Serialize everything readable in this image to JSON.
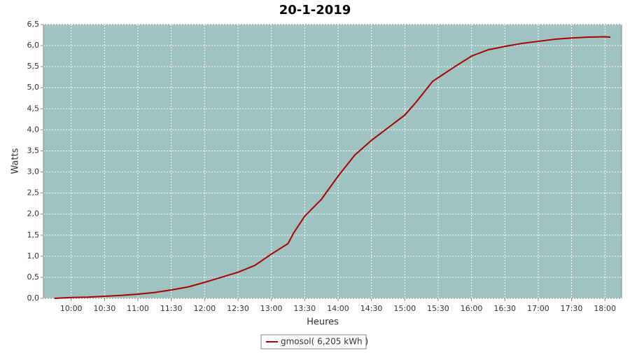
{
  "chart_data": {
    "type": "line",
    "title": "20-1-2019",
    "xlabel": "Heures",
    "ylabel": "Watts",
    "x": [
      "09:45",
      "10:00",
      "10:15",
      "10:30",
      "10:45",
      "11:00",
      "11:15",
      "11:30",
      "11:45",
      "12:00",
      "12:15",
      "12:30",
      "12:45",
      "13:00",
      "13:15",
      "13:20",
      "13:30",
      "13:45",
      "14:00",
      "14:15",
      "14:30",
      "14:45",
      "14:55",
      "15:00",
      "15:10",
      "15:25",
      "15:45",
      "16:00",
      "16:15",
      "16:30",
      "16:45",
      "17:00",
      "17:15",
      "17:30",
      "17:45",
      "18:00",
      "18:05"
    ],
    "series": [
      {
        "name": "gmosol( 6,205 kWh )",
        "color": "#aa0000",
        "values": [
          0,
          0.02,
          0.03,
          0.05,
          0.07,
          0.1,
          0.14,
          0.2,
          0.27,
          0.38,
          0.5,
          0.62,
          0.78,
          1.05,
          1.3,
          1.55,
          1.95,
          2.35,
          2.9,
          3.4,
          3.75,
          4.05,
          4.25,
          4.35,
          4.65,
          5.15,
          5.5,
          5.75,
          5.9,
          5.98,
          6.05,
          6.1,
          6.15,
          6.18,
          6.2,
          6.21,
          6.2
        ]
      }
    ],
    "xlim": [
      "09:35",
      "18:15"
    ],
    "xticks": [
      "10:00",
      "10:30",
      "11:00",
      "11:30",
      "12:00",
      "12:30",
      "13:00",
      "13:30",
      "14:00",
      "14:30",
      "15:00",
      "15:30",
      "16:00",
      "16:30",
      "17:00",
      "17:30",
      "18:00"
    ],
    "ylim": [
      0,
      6.5
    ],
    "yticks": [
      {
        "value": 0,
        "label": "0,0"
      },
      {
        "value": 0.5,
        "label": "0,5"
      },
      {
        "value": 1,
        "label": "1,0"
      },
      {
        "value": 1.5,
        "label": "1,5"
      },
      {
        "value": 2,
        "label": "2,0"
      },
      {
        "value": 2.5,
        "label": "2,5"
      },
      {
        "value": 3,
        "label": "3,0"
      },
      {
        "value": 3.5,
        "label": "3,5"
      },
      {
        "value": 4,
        "label": "4,0"
      },
      {
        "value": 4.5,
        "label": "4,5"
      },
      {
        "value": 5,
        "label": "5,0"
      },
      {
        "value": 5.5,
        "label": "5,5"
      },
      {
        "value": 6,
        "label": "6,0"
      },
      {
        "value": 6.5,
        "label": "6,5"
      }
    ],
    "grid": true,
    "plot_background": "#9fc3c0"
  }
}
